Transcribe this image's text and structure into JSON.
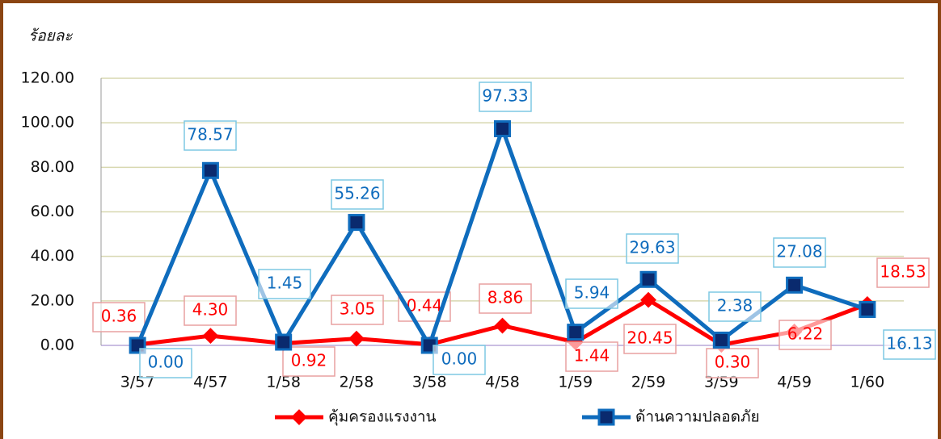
{
  "chart_data": {
    "type": "line",
    "ylabel": "ร้อยละ",
    "categories": [
      "3/57",
      "4/57",
      "1/58",
      "2/58",
      "3/58",
      "4/58",
      "1/59",
      "2/59",
      "3/59",
      "4/59",
      "1/60"
    ],
    "series": [
      {
        "name": "คุ้มครองแรงงาน",
        "color": "#ff0000",
        "values": [
          0.36,
          4.3,
          0.92,
          3.05,
          0.44,
          8.86,
          1.44,
          20.45,
          0.3,
          6.22,
          18.53
        ],
        "value_labels": [
          "0.36",
          "4.30",
          "0.92",
          "3.05",
          "0.44",
          "8.86",
          "1.44",
          "20.45",
          "0.30",
          "6.22",
          "18.53"
        ]
      },
      {
        "name": "ด้านความปลอดภัย",
        "color": "#0f6cbd",
        "values": [
          0,
          78.57,
          1.45,
          55.26,
          0,
          97.33,
          5.94,
          29.63,
          2.38,
          27.08,
          16.13
        ],
        "value_labels": [
          "0.00",
          "78.57",
          "1.45",
          "55.26",
          "0.00",
          "97.33",
          "5.94",
          "29.63",
          "2.38",
          "27.08",
          "16.13"
        ]
      }
    ],
    "ylim": [
      0,
      120
    ],
    "yticks": [
      {
        "value": 0,
        "label": "0.00"
      },
      {
        "value": 20,
        "label": "20.00"
      },
      {
        "value": 40,
        "label": "40.00"
      },
      {
        "value": 60,
        "label": "60.00"
      },
      {
        "value": 80,
        "label": "80.00"
      },
      {
        "value": 100,
        "label": "100.00"
      },
      {
        "value": 120,
        "label": "120.00"
      }
    ],
    "grid": true
  }
}
